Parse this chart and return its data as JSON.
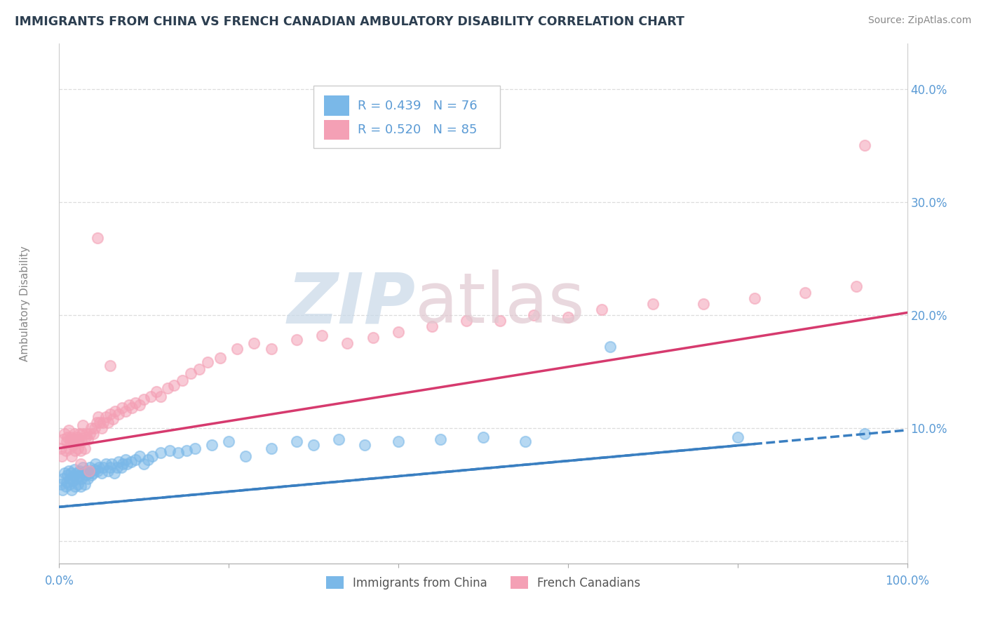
{
  "title": "IMMIGRANTS FROM CHINA VS FRENCH CANADIAN AMBULATORY DISABILITY CORRELATION CHART",
  "source": "Source: ZipAtlas.com",
  "ylabel": "Ambulatory Disability",
  "yticks": [
    0.0,
    0.1,
    0.2,
    0.3,
    0.4
  ],
  "ytick_labels": [
    "",
    "10.0%",
    "20.0%",
    "30.0%",
    "40.0%"
  ],
  "xlim": [
    0.0,
    1.0
  ],
  "ylim": [
    -0.02,
    0.44
  ],
  "legend_blue_r": "R = 0.439",
  "legend_blue_n": "N = 76",
  "legend_pink_r": "R = 0.520",
  "legend_pink_n": "N = 85",
  "legend_label_blue": "Immigrants from China",
  "legend_label_pink": "French Canadians",
  "blue_color": "#7ab8e8",
  "pink_color": "#f4a0b5",
  "blue_line_color": "#3a7fc1",
  "pink_line_color": "#d63a6e",
  "axis_label_color": "#5b9bd5",
  "blue_trend_start": 0.03,
  "blue_trend_end": 0.098,
  "pink_trend_start": 0.082,
  "pink_trend_end": 0.202,
  "blue_scatter_x": [
    0.002,
    0.004,
    0.005,
    0.006,
    0.008,
    0.009,
    0.01,
    0.011,
    0.012,
    0.013,
    0.014,
    0.015,
    0.016,
    0.017,
    0.018,
    0.019,
    0.02,
    0.021,
    0.022,
    0.023,
    0.024,
    0.025,
    0.026,
    0.027,
    0.028,
    0.03,
    0.031,
    0.032,
    0.034,
    0.035,
    0.036,
    0.038,
    0.04,
    0.042,
    0.043,
    0.045,
    0.047,
    0.05,
    0.052,
    0.055,
    0.058,
    0.06,
    0.062,
    0.065,
    0.068,
    0.07,
    0.073,
    0.075,
    0.078,
    0.08,
    0.085,
    0.09,
    0.095,
    0.1,
    0.105,
    0.11,
    0.12,
    0.13,
    0.14,
    0.15,
    0.16,
    0.18,
    0.2,
    0.22,
    0.25,
    0.28,
    0.3,
    0.33,
    0.36,
    0.4,
    0.45,
    0.5,
    0.55,
    0.65,
    0.8,
    0.95
  ],
  "blue_scatter_y": [
    0.05,
    0.045,
    0.055,
    0.06,
    0.048,
    0.052,
    0.058,
    0.062,
    0.05,
    0.055,
    0.06,
    0.045,
    0.053,
    0.058,
    0.063,
    0.048,
    0.055,
    0.06,
    0.05,
    0.057,
    0.062,
    0.048,
    0.055,
    0.06,
    0.065,
    0.05,
    0.058,
    0.062,
    0.055,
    0.06,
    0.065,
    0.058,
    0.06,
    0.063,
    0.068,
    0.062,
    0.065,
    0.06,
    0.065,
    0.068,
    0.062,
    0.065,
    0.068,
    0.06,
    0.065,
    0.07,
    0.065,
    0.068,
    0.072,
    0.068,
    0.07,
    0.072,
    0.075,
    0.068,
    0.072,
    0.075,
    0.078,
    0.08,
    0.078,
    0.08,
    0.082,
    0.085,
    0.088,
    0.075,
    0.082,
    0.088,
    0.085,
    0.09,
    0.085,
    0.088,
    0.09,
    0.092,
    0.088,
    0.172,
    0.092,
    0.095
  ],
  "pink_scatter_x": [
    0.002,
    0.003,
    0.005,
    0.006,
    0.008,
    0.009,
    0.01,
    0.011,
    0.012,
    0.013,
    0.014,
    0.015,
    0.016,
    0.017,
    0.018,
    0.019,
    0.02,
    0.021,
    0.022,
    0.023,
    0.024,
    0.025,
    0.026,
    0.027,
    0.028,
    0.03,
    0.031,
    0.032,
    0.034,
    0.036,
    0.038,
    0.04,
    0.042,
    0.044,
    0.046,
    0.048,
    0.05,
    0.052,
    0.055,
    0.058,
    0.06,
    0.063,
    0.066,
    0.07,
    0.074,
    0.078,
    0.082,
    0.086,
    0.09,
    0.095,
    0.1,
    0.108,
    0.115,
    0.12,
    0.128,
    0.135,
    0.145,
    0.155,
    0.165,
    0.175,
    0.19,
    0.21,
    0.23,
    0.25,
    0.28,
    0.31,
    0.34,
    0.37,
    0.4,
    0.44,
    0.48,
    0.52,
    0.56,
    0.6,
    0.64,
    0.7,
    0.76,
    0.82,
    0.88,
    0.94,
    0.95,
    0.045,
    0.06,
    0.025,
    0.035
  ],
  "pink_scatter_y": [
    0.082,
    0.075,
    0.09,
    0.095,
    0.08,
    0.088,
    0.092,
    0.098,
    0.082,
    0.088,
    0.092,
    0.075,
    0.085,
    0.09,
    0.095,
    0.08,
    0.088,
    0.092,
    0.082,
    0.09,
    0.095,
    0.08,
    0.088,
    0.095,
    0.102,
    0.082,
    0.092,
    0.095,
    0.09,
    0.095,
    0.1,
    0.095,
    0.1,
    0.105,
    0.11,
    0.105,
    0.1,
    0.105,
    0.11,
    0.105,
    0.112,
    0.108,
    0.115,
    0.112,
    0.118,
    0.115,
    0.12,
    0.118,
    0.122,
    0.12,
    0.125,
    0.128,
    0.132,
    0.128,
    0.135,
    0.138,
    0.142,
    0.148,
    0.152,
    0.158,
    0.162,
    0.17,
    0.175,
    0.17,
    0.178,
    0.182,
    0.175,
    0.18,
    0.185,
    0.19,
    0.195,
    0.195,
    0.2,
    0.198,
    0.205,
    0.21,
    0.21,
    0.215,
    0.22,
    0.225,
    0.35,
    0.268,
    0.155,
    0.068,
    0.062
  ]
}
